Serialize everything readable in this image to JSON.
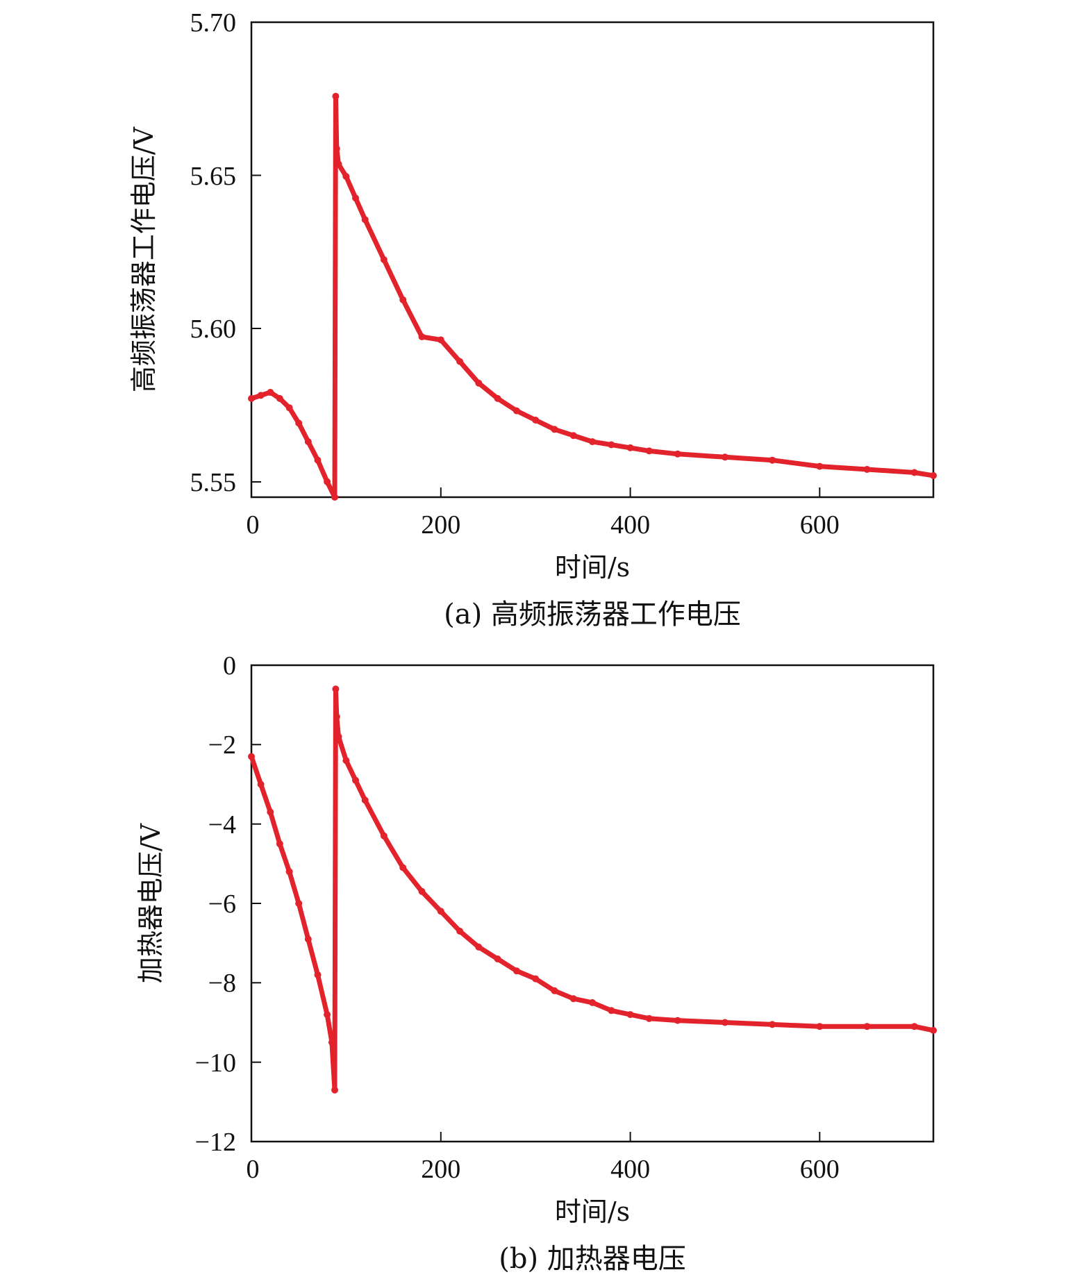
{
  "charts": [
    {
      "caption": "(a) 高频振荡器工作电压",
      "xlabel": "时间/s",
      "ylabel": "高频振荡器工作电压/V",
      "line_color": "#e3232b",
      "x_ticks": [
        "0",
        "200",
        "400",
        "600"
      ],
      "y_ticks": [
        "5.55",
        "5.60",
        "5.65",
        "5.70"
      ]
    },
    {
      "caption": "(b) 加热器电压",
      "xlabel": "时间/s",
      "ylabel": "加热器电压/V",
      "line_color": "#e3232b",
      "x_ticks": [
        "0",
        "200",
        "400",
        "600"
      ],
      "y_ticks": [
        "−12",
        "−10",
        "−8",
        "−6",
        "−4",
        "−2",
        "0"
      ]
    }
  ],
  "chart_data": [
    {
      "type": "line",
      "title": "",
      "xlabel": "时间/s",
      "ylabel": "高频振荡器工作电压/V",
      "xlim": [
        0,
        720
      ],
      "ylim": [
        5.546,
        5.7
      ],
      "grid": false,
      "series": [
        {
          "x": [
            0,
            10,
            20,
            30,
            40,
            50,
            60,
            70,
            80,
            88,
            89,
            90,
            92,
            100,
            110,
            120,
            140,
            160,
            180,
            200,
            220,
            240,
            260,
            280,
            300,
            320,
            340,
            360,
            380,
            400,
            420,
            450,
            500,
            550,
            600,
            650,
            700,
            720
          ],
          "y": [
            5.578,
            5.579,
            5.58,
            5.578,
            5.575,
            5.57,
            5.564,
            5.558,
            5.551,
            5.546,
            5.676,
            5.659,
            5.654,
            5.65,
            5.643,
            5.636,
            5.623,
            5.61,
            5.598,
            5.597,
            5.59,
            5.583,
            5.578,
            5.574,
            5.571,
            5.568,
            5.566,
            5.564,
            5.563,
            5.562,
            5.561,
            5.56,
            5.559,
            5.558,
            5.556,
            5.555,
            5.554,
            5.553
          ]
        }
      ]
    },
    {
      "type": "line",
      "title": "",
      "xlabel": "时间/s",
      "ylabel": "加热器电压/V",
      "xlim": [
        0,
        720
      ],
      "ylim": [
        -12,
        0
      ],
      "grid": false,
      "series": [
        {
          "x": [
            0,
            10,
            20,
            30,
            40,
            50,
            60,
            70,
            80,
            85,
            88,
            89,
            90,
            92,
            100,
            110,
            120,
            140,
            160,
            180,
            200,
            220,
            240,
            260,
            280,
            300,
            320,
            340,
            360,
            380,
            400,
            420,
            450,
            500,
            550,
            600,
            650,
            700,
            720
          ],
          "y": [
            -2.3,
            -3.0,
            -3.7,
            -4.5,
            -5.2,
            -6.0,
            -6.9,
            -7.8,
            -8.8,
            -9.5,
            -10.7,
            -0.6,
            -1.3,
            -1.8,
            -2.4,
            -2.9,
            -3.4,
            -4.3,
            -5.1,
            -5.7,
            -6.2,
            -6.7,
            -7.1,
            -7.4,
            -7.7,
            -7.9,
            -8.2,
            -8.4,
            -8.5,
            -8.7,
            -8.8,
            -8.9,
            -8.95,
            -9.0,
            -9.05,
            -9.1,
            -9.1,
            -9.1,
            -9.2
          ]
        }
      ]
    }
  ]
}
